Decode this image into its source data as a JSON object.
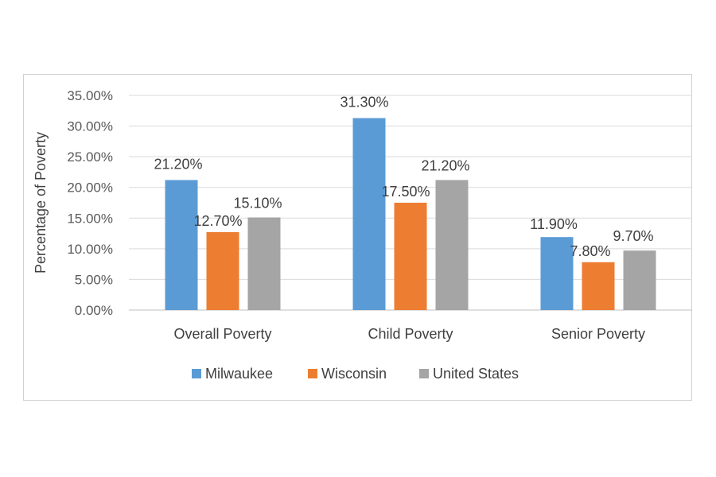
{
  "chart_data": {
    "type": "bar",
    "title": "",
    "xlabel": "",
    "ylabel": "Percentage of Poverty",
    "ylim": [
      0,
      35
    ],
    "yticks": [
      0,
      5,
      10,
      15,
      20,
      25,
      30,
      35
    ],
    "ytick_labels": [
      "0.00%",
      "5.00%",
      "10.00%",
      "15.00%",
      "20.00%",
      "25.00%",
      "30.00%",
      "35.00%"
    ],
    "categories": [
      "Overall Poverty",
      "Child Poverty",
      "Senior Poverty"
    ],
    "series": [
      {
        "name": "Milwaukee",
        "color": "#5b9bd5",
        "values": [
          21.2,
          31.3,
          11.9
        ],
        "labels": [
          "21.20%",
          "31.30%",
          "11.90%"
        ]
      },
      {
        "name": "Wisconsin",
        "color": "#ed7d31",
        "values": [
          12.7,
          17.5,
          7.8
        ],
        "labels": [
          "12.70%",
          "17.50%",
          "7.80%"
        ]
      },
      {
        "name": "United States",
        "color": "#a5a5a5",
        "values": [
          15.1,
          21.2,
          9.7
        ],
        "labels": [
          "15.10%",
          "21.20%",
          "9.70%"
        ]
      }
    ],
    "grid": true,
    "legend_position": "bottom"
  }
}
